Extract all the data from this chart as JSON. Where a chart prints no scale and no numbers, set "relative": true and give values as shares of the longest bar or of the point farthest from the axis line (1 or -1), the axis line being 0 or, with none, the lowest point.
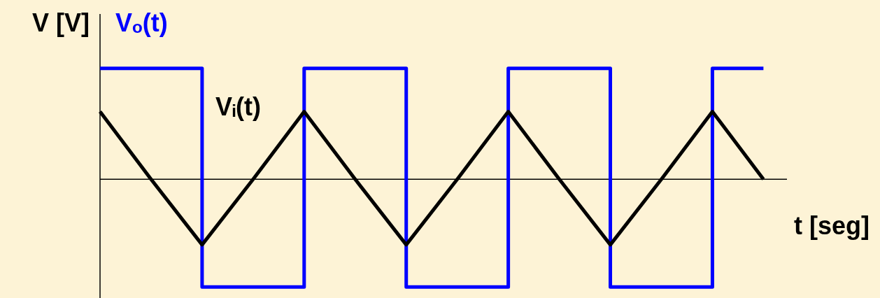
{
  "chart_data": {
    "type": "line",
    "relative": true,
    "xlabel": "t [seg]",
    "ylabel": "V [V]",
    "categories": [
      null,
      null,
      null,
      null,
      null,
      null,
      null,
      null,
      null,
      null,
      null,
      null,
      null,
      null
    ],
    "series": [
      {
        "name": "Vₒ(t)",
        "type": "step",
        "color": "#0000ff",
        "values": [
          1,
          1,
          -0.97,
          -0.97,
          1,
          1,
          -0.97,
          -0.97,
          1,
          1,
          -0.97,
          -0.97,
          1,
          1
        ]
      },
      {
        "name": "Vᵢ(t)",
        "color": "#000000",
        "values": [
          0.61,
          0,
          -0.59,
          0,
          0.61,
          0,
          -0.59,
          0,
          0.61,
          0,
          -0.59,
          0,
          0.61,
          0
        ]
      }
    ]
  }
}
